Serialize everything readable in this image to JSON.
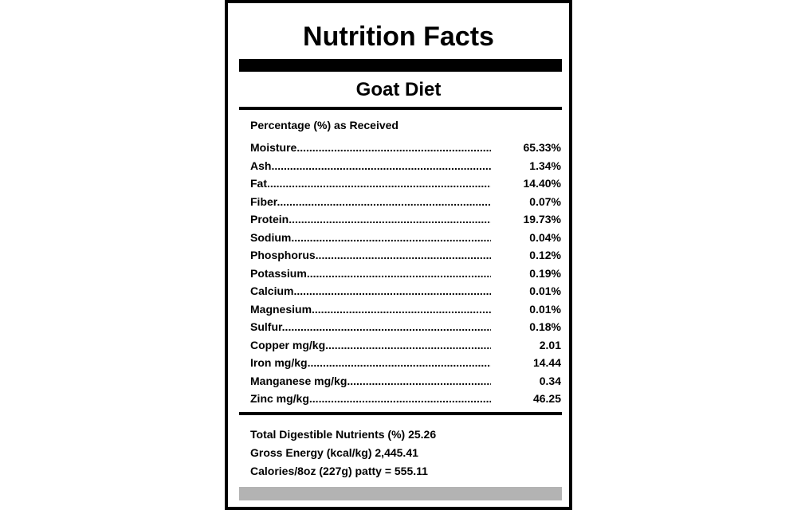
{
  "label": {
    "title": "Nutrition Facts",
    "subtitle": "Goat Diet",
    "section_heading": "Percentage (%) as Received",
    "nutrients": [
      {
        "name": "Moisture",
        "value": "65.33%"
      },
      {
        "name": "Ash",
        "value": "1.34%"
      },
      {
        "name": "Fat",
        "value": "14.40%"
      },
      {
        "name": "Fiber",
        "value": "0.07%"
      },
      {
        "name": "Protein",
        "value": "19.73%"
      },
      {
        "name": "Sodium",
        "value": "0.04%"
      },
      {
        "name": "Phosphorus",
        "value": "0.12%"
      },
      {
        "name": "Potassium",
        "value": "0.19%"
      },
      {
        "name": "Calcium",
        "value": "0.01%"
      },
      {
        "name": "Magnesium",
        "value": "0.01%"
      },
      {
        "name": "Sulfur",
        "value": "0.18%"
      },
      {
        "name": "Copper mg/kg",
        "value": "2.01"
      },
      {
        "name": "Iron mg/kg",
        "value": "14.44"
      },
      {
        "name": "Manganese mg/kg",
        "value": "0.34"
      },
      {
        "name": "Zinc mg/kg",
        "value": "46.25"
      }
    ],
    "summary": [
      "Total Digestible Nutrients (%) 25.26",
      "Gross Energy (kcal/kg) 2,445.41",
      "Calories/8oz (227g) patty = 555.11"
    ],
    "colors": {
      "text": "#000000",
      "border": "#000000",
      "footer_bar": "#b3b3b3",
      "background": "#ffffff"
    }
  }
}
